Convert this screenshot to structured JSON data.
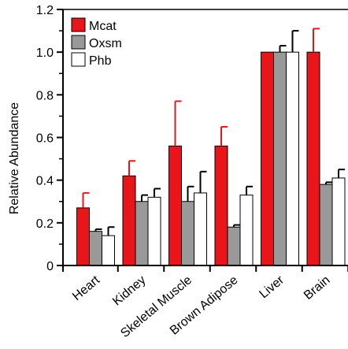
{
  "chart_data": {
    "type": "bar",
    "ylabel": "Relative Abundance",
    "xlabel": "",
    "ylim": [
      0,
      1.2
    ],
    "y_ticks": [
      {
        "value": 0,
        "label": "0"
      },
      {
        "value": 0.2,
        "label": "0.2"
      },
      {
        "value": 0.4,
        "label": "0.4"
      },
      {
        "value": 0.6,
        "label": "0.6"
      },
      {
        "value": 0.8,
        "label": "0.8"
      },
      {
        "value": 1.0,
        "label": "1.0"
      },
      {
        "value": 1.2,
        "label": "1.2"
      }
    ],
    "categories": [
      "Heart",
      "Kidney",
      "Skeletal Muscle",
      "Brown Adipose",
      "Liver",
      "Brain"
    ],
    "legend_position": "top-left",
    "series": [
      {
        "name": "Mcat",
        "color": "#e8151b",
        "error_color": "#e8151b",
        "values": [
          0.27,
          0.42,
          0.56,
          0.56,
          1.0,
          1.0
        ],
        "errors": [
          0.07,
          0.07,
          0.21,
          0.09,
          0.0,
          0.11
        ]
      },
      {
        "name": "Oxsm",
        "color": "#999999",
        "error_color": "#000000",
        "values": [
          0.16,
          0.3,
          0.3,
          0.18,
          1.0,
          0.38
        ],
        "errors": [
          0.01,
          0.03,
          0.07,
          0.01,
          0.03,
          0.01
        ]
      },
      {
        "name": "Phb",
        "color": "#ffffff",
        "error_color": "#000000",
        "values": [
          0.14,
          0.32,
          0.34,
          0.33,
          1.0,
          0.41
        ],
        "errors": [
          0.04,
          0.04,
          0.1,
          0.04,
          0.1,
          0.04
        ]
      }
    ]
  }
}
